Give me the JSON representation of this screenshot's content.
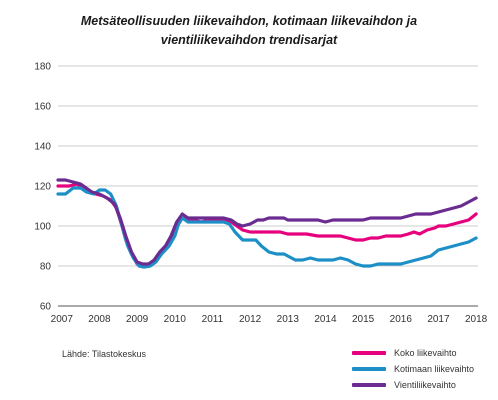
{
  "chart_data": {
    "type": "line",
    "title_line1": "Metsäteollisuuden liikevaihdon, kotimaan liikevaihdon ja",
    "title_line2": "vientiliikevaihdon trendisarjat",
    "source": "Lähde: Tilastokeskus",
    "xlabel": "",
    "ylabel": "",
    "ylim": [
      60,
      180
    ],
    "yticks": [
      "180",
      "160",
      "140",
      "120",
      "100",
      "80",
      "60"
    ],
    "xlim": [
      2006.9,
      2018.05
    ],
    "xticks": [
      "2007",
      "2008",
      "2009",
      "2010",
      "2011",
      "2012",
      "2013",
      "2014",
      "2015",
      "2016",
      "2017",
      "2018"
    ],
    "grid": "horizontal",
    "legend_position": "bottom-right",
    "series": [
      {
        "name": "Koko liikevaihto",
        "color": "#e6007e",
        "points": [
          [
            2006.9,
            120
          ],
          [
            2007.2,
            120
          ],
          [
            2007.4,
            121
          ],
          [
            2007.6,
            119
          ],
          [
            2007.75,
            117
          ],
          [
            2007.9,
            116
          ],
          [
            2008.1,
            115
          ],
          [
            2008.3,
            113
          ],
          [
            2008.45,
            109
          ],
          [
            2008.6,
            100
          ],
          [
            2008.7,
            93
          ],
          [
            2008.85,
            86
          ],
          [
            2009.0,
            81
          ],
          [
            2009.15,
            79.5
          ],
          [
            2009.3,
            80
          ],
          [
            2009.45,
            82
          ],
          [
            2009.6,
            86
          ],
          [
            2009.75,
            89
          ],
          [
            2009.9,
            92
          ],
          [
            2010.0,
            96
          ],
          [
            2010.1,
            101
          ],
          [
            2010.2,
            104
          ],
          [
            2010.35,
            103
          ],
          [
            2010.5,
            103
          ],
          [
            2010.7,
            102
          ],
          [
            2010.9,
            103
          ],
          [
            2011.1,
            103
          ],
          [
            2011.3,
            103
          ],
          [
            2011.5,
            102
          ],
          [
            2011.65,
            100
          ],
          [
            2011.8,
            98
          ],
          [
            2012.0,
            97
          ],
          [
            2012.2,
            97
          ],
          [
            2012.5,
            97
          ],
          [
            2012.8,
            97
          ],
          [
            2013.0,
            96
          ],
          [
            2013.2,
            96
          ],
          [
            2013.5,
            96
          ],
          [
            2013.8,
            95
          ],
          [
            2014.0,
            95
          ],
          [
            2014.2,
            95
          ],
          [
            2014.4,
            95
          ],
          [
            2014.6,
            94
          ],
          [
            2014.8,
            93
          ],
          [
            2015.0,
            93
          ],
          [
            2015.2,
            94
          ],
          [
            2015.4,
            94
          ],
          [
            2015.6,
            95
          ],
          [
            2015.8,
            95
          ],
          [
            2016.0,
            95
          ],
          [
            2016.2,
            96
          ],
          [
            2016.35,
            97
          ],
          [
            2016.5,
            96
          ],
          [
            2016.7,
            98
          ],
          [
            2016.9,
            99
          ],
          [
            2017.0,
            100
          ],
          [
            2017.2,
            100
          ],
          [
            2017.4,
            101
          ],
          [
            2017.6,
            102
          ],
          [
            2017.8,
            103
          ],
          [
            2018.0,
            106
          ]
        ]
      },
      {
        "name": "Kotimaan liikevaihto",
        "color": "#1d8fc7",
        "points": [
          [
            2006.9,
            116
          ],
          [
            2007.1,
            116
          ],
          [
            2007.3,
            119
          ],
          [
            2007.5,
            119
          ],
          [
            2007.65,
            117
          ],
          [
            2007.85,
            116
          ],
          [
            2008.0,
            118
          ],
          [
            2008.15,
            118
          ],
          [
            2008.3,
            116
          ],
          [
            2008.45,
            110
          ],
          [
            2008.6,
            100
          ],
          [
            2008.75,
            90
          ],
          [
            2008.9,
            84
          ],
          [
            2009.05,
            80
          ],
          [
            2009.2,
            79.5
          ],
          [
            2009.35,
            80
          ],
          [
            2009.5,
            82
          ],
          [
            2009.65,
            86
          ],
          [
            2009.85,
            90
          ],
          [
            2010.0,
            95
          ],
          [
            2010.1,
            101
          ],
          [
            2010.2,
            104
          ],
          [
            2010.35,
            102
          ],
          [
            2010.5,
            102
          ],
          [
            2010.7,
            102
          ],
          [
            2010.9,
            102
          ],
          [
            2011.1,
            102
          ],
          [
            2011.3,
            102
          ],
          [
            2011.45,
            101
          ],
          [
            2011.6,
            97
          ],
          [
            2011.8,
            93
          ],
          [
            2012.0,
            93
          ],
          [
            2012.15,
            93
          ],
          [
            2012.3,
            90
          ],
          [
            2012.5,
            87
          ],
          [
            2012.7,
            86
          ],
          [
            2012.9,
            86
          ],
          [
            2013.0,
            85
          ],
          [
            2013.2,
            83
          ],
          [
            2013.4,
            83
          ],
          [
            2013.6,
            84
          ],
          [
            2013.8,
            83
          ],
          [
            2014.0,
            83
          ],
          [
            2014.2,
            83
          ],
          [
            2014.4,
            84
          ],
          [
            2014.6,
            83
          ],
          [
            2014.8,
            81
          ],
          [
            2015.0,
            80
          ],
          [
            2015.2,
            80
          ],
          [
            2015.4,
            81
          ],
          [
            2015.6,
            81
          ],
          [
            2015.8,
            81
          ],
          [
            2016.0,
            81
          ],
          [
            2016.2,
            82
          ],
          [
            2016.4,
            83
          ],
          [
            2016.6,
            84
          ],
          [
            2016.8,
            85
          ],
          [
            2017.0,
            88
          ],
          [
            2017.2,
            89
          ],
          [
            2017.4,
            90
          ],
          [
            2017.6,
            91
          ],
          [
            2017.8,
            92
          ],
          [
            2018.0,
            94
          ]
        ]
      },
      {
        "name": "Vientiliikevaihto",
        "color": "#6a2c91",
        "points": [
          [
            2006.9,
            123
          ],
          [
            2007.1,
            123
          ],
          [
            2007.3,
            122
          ],
          [
            2007.5,
            121
          ],
          [
            2007.65,
            119
          ],
          [
            2007.8,
            117
          ],
          [
            2008.0,
            116
          ],
          [
            2008.2,
            114
          ],
          [
            2008.4,
            111
          ],
          [
            2008.55,
            104
          ],
          [
            2008.7,
            95
          ],
          [
            2008.85,
            87
          ],
          [
            2009.0,
            82
          ],
          [
            2009.15,
            81
          ],
          [
            2009.3,
            81
          ],
          [
            2009.45,
            83
          ],
          [
            2009.6,
            87
          ],
          [
            2009.75,
            90
          ],
          [
            2009.9,
            95
          ],
          [
            2010.05,
            102
          ],
          [
            2010.2,
            106
          ],
          [
            2010.35,
            104
          ],
          [
            2010.5,
            104
          ],
          [
            2010.7,
            104
          ],
          [
            2010.9,
            104
          ],
          [
            2011.1,
            104
          ],
          [
            2011.3,
            104
          ],
          [
            2011.5,
            103
          ],
          [
            2011.65,
            101
          ],
          [
            2011.8,
            100
          ],
          [
            2012.0,
            101
          ],
          [
            2012.2,
            103
          ],
          [
            2012.35,
            103
          ],
          [
            2012.5,
            104
          ],
          [
            2012.7,
            104
          ],
          [
            2012.9,
            104
          ],
          [
            2013.0,
            103
          ],
          [
            2013.2,
            103
          ],
          [
            2013.4,
            103
          ],
          [
            2013.6,
            103
          ],
          [
            2013.8,
            103
          ],
          [
            2014.0,
            102
          ],
          [
            2014.2,
            103
          ],
          [
            2014.4,
            103
          ],
          [
            2014.6,
            103
          ],
          [
            2014.8,
            103
          ],
          [
            2015.0,
            103
          ],
          [
            2015.2,
            104
          ],
          [
            2015.4,
            104
          ],
          [
            2015.6,
            104
          ],
          [
            2015.8,
            104
          ],
          [
            2016.0,
            104
          ],
          [
            2016.2,
            105
          ],
          [
            2016.4,
            106
          ],
          [
            2016.6,
            106
          ],
          [
            2016.8,
            106
          ],
          [
            2017.0,
            107
          ],
          [
            2017.2,
            108
          ],
          [
            2017.4,
            109
          ],
          [
            2017.6,
            110
          ],
          [
            2017.8,
            112
          ],
          [
            2018.0,
            114
          ]
        ]
      }
    ]
  }
}
